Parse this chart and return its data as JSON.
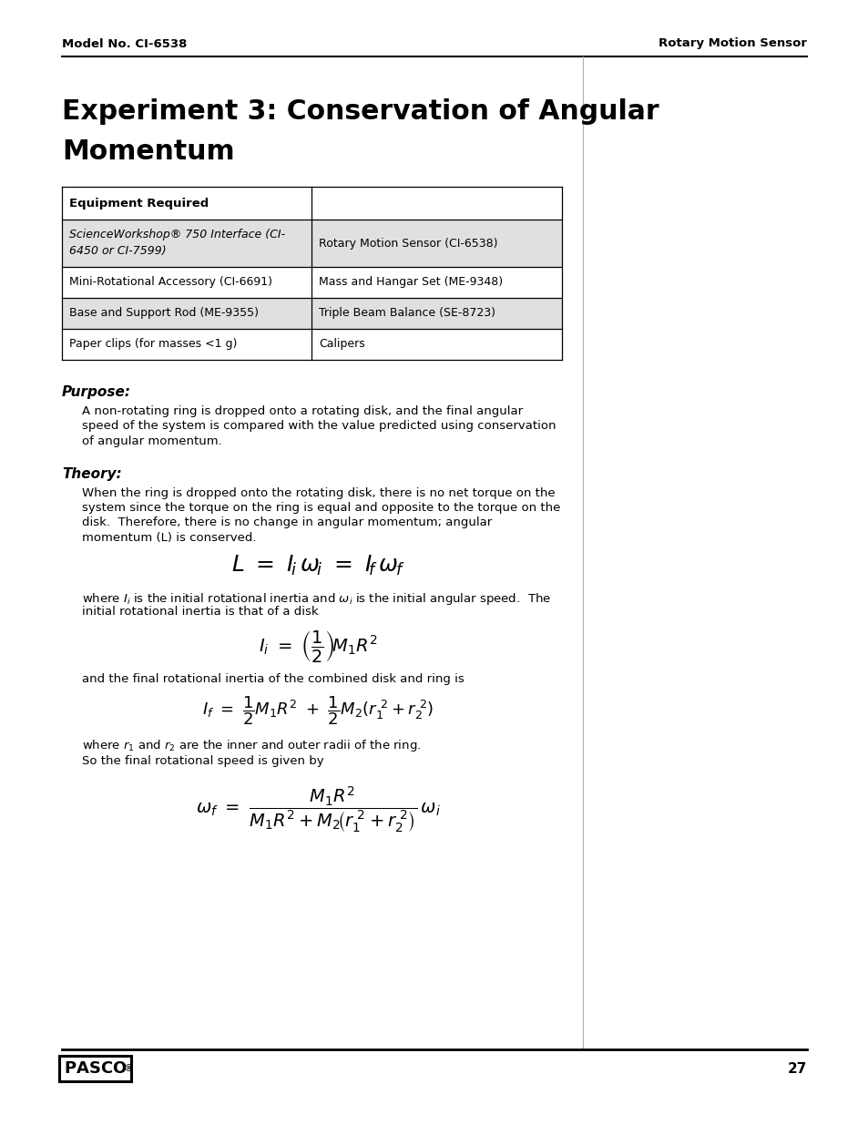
{
  "header_left": "Model No. CI-6538",
  "header_right": "Rotary Motion Sensor",
  "title_line1": "Experiment 3: Conservation of Angular",
  "title_line2": "Momentum",
  "table_header": "Equipment Required",
  "table_col1_row0_line1": "ScienceWorkshop® 750 Interface (CI-",
  "table_col1_row0_line2": "6450 or CI-7599)",
  "table_col1_rows": [
    "Mini-Rotational Accessory (CI-6691)",
    "Base and Support Rod (ME-9355)",
    "Paper clips (for masses <1 g)"
  ],
  "table_col2_all": [
    "Rotary Motion Sensor (CI-6538)",
    "Mass and Hangar Set (ME-9348)",
    "Triple Beam Balance (SE-8723)",
    "Calipers"
  ],
  "shaded_rows": [
    0,
    2
  ],
  "purpose_heading": "Purpose:",
  "purpose_lines": [
    "A non-rotating ring is dropped onto a rotating disk, and the final angular",
    "speed of the system is compared with the value predicted using conservation",
    "of angular momentum."
  ],
  "theory_heading": "Theory:",
  "theory_lines": [
    "When the ring is dropped onto the rotating disk, there is no net torque on the",
    "system since the torque on the ring is equal and opposite to the torque on the",
    "disk.  Therefore, there is no change in angular momentum; angular",
    "momentum (L) is conserved."
  ],
  "after_eq1_lines": [
    "where $I_i$ is the initial rotational inertia and $\\omega_i$ is the initial angular speed.  The",
    "initial rotational inertia is that of a disk"
  ],
  "after_eq2_line": "and the final rotational inertia of the combined disk and ring is",
  "after_eq3_line": "where $r_1$ and $r_2$ are the inner and outer radii of the ring.",
  "after_eq3b_line": "So the final rotational speed is given by",
  "page_number": "27",
  "bg_color": "#ffffff",
  "text_color": "#000000",
  "shade_color": "#e0e0e0",
  "line_color": "#000000"
}
